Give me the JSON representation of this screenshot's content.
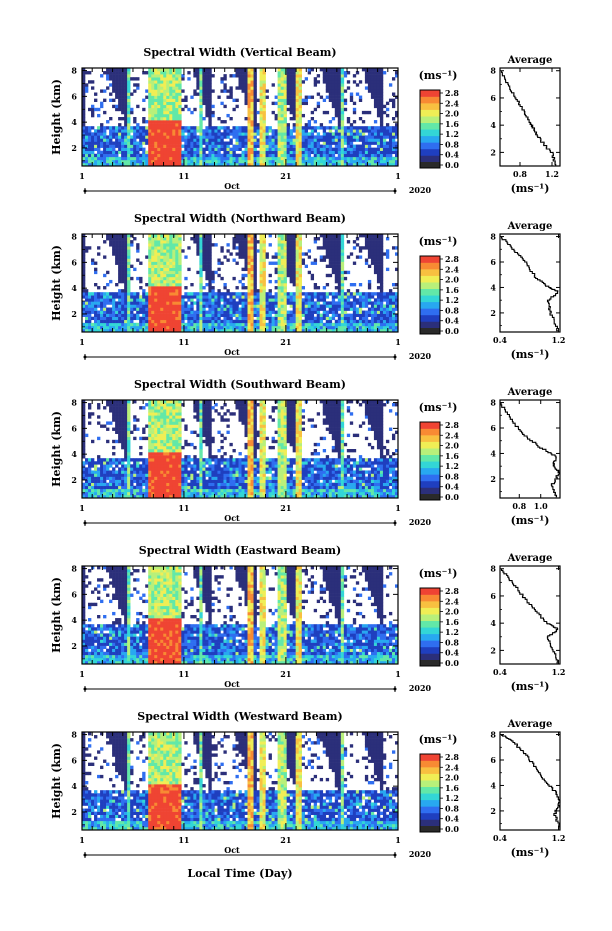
{
  "colors": {
    "colormap": [
      "#2b2f7a",
      "#1f3fbf",
      "#2f6ef0",
      "#28a8f0",
      "#33d6d6",
      "#62e8a8",
      "#b8f07a",
      "#f0ee55",
      "#f8c040",
      "#f88a33",
      "#ef4433"
    ],
    "colorbar_low": "#2a2a2a"
  },
  "common": {
    "height_label": "Height (km)",
    "month_label": "Oct",
    "year_label": "2020",
    "unit_label": "(ms⁻¹)",
    "average_title": "Average",
    "xlabel": "Local Time (Day)"
  },
  "chart_data": [
    {
      "type": "heatmap",
      "title": "Spectral Width (Vertical Beam)",
      "ylabel": "Height (km)",
      "xlabel": "",
      "x_ticks": [
        "1",
        "11",
        "21",
        "1"
      ],
      "xlim_days": [
        1,
        32
      ],
      "y_ticks": [
        "2",
        "4",
        "6",
        "8"
      ],
      "ylim_km": [
        0.6,
        8.2
      ],
      "colorbar": {
        "label": "(ms⁻¹)",
        "ticks": [
          "2.8",
          "2.4",
          "2.0",
          "1.6",
          "1.2",
          "0.8",
          "0.4",
          "0.0"
        ],
        "range": [
          0.0,
          2.8
        ]
      },
      "average_profile": {
        "title": "Average",
        "xlabel": "(ms⁻¹)",
        "x_ticks": [
          "0.8",
          "1.2"
        ],
        "xlim": [
          0.55,
          1.3
        ],
        "y_ticks": [
          "2",
          "4",
          "6",
          "8"
        ],
        "ylim": [
          1.0,
          8.2
        ],
        "profile": [
          [
            1.25,
            1.0
          ],
          [
            1.2,
            2.0
          ],
          [
            1.05,
            3.0
          ],
          [
            0.97,
            3.8
          ],
          [
            0.93,
            4.2
          ],
          [
            0.86,
            5.0
          ],
          [
            0.75,
            6.0
          ],
          [
            0.65,
            7.0
          ],
          [
            0.57,
            8.0
          ]
        ]
      }
    },
    {
      "type": "heatmap",
      "title": "Spectral Width (Northward Beam)",
      "ylabel": "Height (km)",
      "xlabel": "",
      "x_ticks": [
        "1",
        "11",
        "21",
        "1"
      ],
      "xlim_days": [
        1,
        32
      ],
      "y_ticks": [
        "2",
        "4",
        "6",
        "8"
      ],
      "ylim_km": [
        0.6,
        8.2
      ],
      "colorbar": {
        "label": "(ms⁻¹)",
        "ticks": [
          "2.8",
          "2.4",
          "2.0",
          "1.6",
          "1.2",
          "0.8",
          "0.4",
          "0.0"
        ],
        "range": [
          0.0,
          2.8
        ]
      },
      "average_profile": {
        "title": "Average",
        "xlabel": "(ms⁻¹)",
        "x_ticks": [
          "0.4",
          "1.2"
        ],
        "xlim": [
          0.4,
          1.22
        ],
        "y_ticks": [
          "2",
          "4",
          "6",
          "8"
        ],
        "ylim": [
          0.5,
          8.2
        ],
        "profile": [
          [
            1.2,
            0.6
          ],
          [
            1.1,
            2.0
          ],
          [
            1.05,
            3.0
          ],
          [
            1.2,
            3.7
          ],
          [
            1.08,
            4.0
          ],
          [
            0.9,
            4.8
          ],
          [
            0.75,
            6.0
          ],
          [
            0.6,
            7.0
          ],
          [
            0.42,
            8.0
          ]
        ]
      }
    },
    {
      "type": "heatmap",
      "title": "Spectral Width (Southward Beam)",
      "ylabel": "Height (km)",
      "xlabel": "",
      "x_ticks": [
        "1",
        "11",
        "21",
        "1"
      ],
      "xlim_days": [
        1,
        32
      ],
      "y_ticks": [
        "2",
        "4",
        "6",
        "8"
      ],
      "ylim_km": [
        0.6,
        8.2
      ],
      "colorbar": {
        "label": "(ms⁻¹)",
        "ticks": [
          "2.8",
          "2.4",
          "2.0",
          "1.6",
          "1.2",
          "0.8",
          "0.4",
          "0.0"
        ],
        "range": [
          0.0,
          2.8
        ]
      },
      "average_profile": {
        "title": "Average",
        "xlabel": "(ms⁻¹)",
        "x_ticks": [
          "0.8",
          "1.0"
        ],
        "xlim": [
          0.62,
          1.18
        ],
        "y_ticks": [
          "2",
          "4",
          "6",
          "8"
        ],
        "ylim": [
          0.5,
          8.2
        ],
        "profile": [
          [
            1.15,
            0.6
          ],
          [
            1.1,
            1.5
          ],
          [
            1.17,
            2.5
          ],
          [
            1.12,
            3.2
          ],
          [
            1.15,
            3.8
          ],
          [
            1.0,
            4.5
          ],
          [
            0.85,
            5.5
          ],
          [
            0.74,
            6.5
          ],
          [
            0.63,
            8.0
          ]
        ]
      }
    },
    {
      "type": "heatmap",
      "title": "Spectral Width (Eastward Beam)",
      "ylabel": "Height (km)",
      "xlabel": "",
      "x_ticks": [
        "1",
        "11",
        "21",
        "1"
      ],
      "xlim_days": [
        1,
        32
      ],
      "y_ticks": [
        "2",
        "4",
        "6",
        "8"
      ],
      "ylim_km": [
        0.6,
        8.2
      ],
      "colorbar": {
        "label": "(ms⁻¹)",
        "ticks": [
          "2.8",
          "2.4",
          "2.0",
          "1.6",
          "1.2",
          "0.8",
          "0.4",
          "0.0"
        ],
        "range": [
          0.0,
          2.8
        ]
      },
      "average_profile": {
        "title": "Average",
        "xlabel": "(ms⁻¹)",
        "x_ticks": [
          "0.4",
          "1.2"
        ],
        "xlim": [
          0.4,
          1.22
        ],
        "y_ticks": [
          "2",
          "4",
          "6",
          "8"
        ],
        "ylim": [
          1.0,
          8.2
        ],
        "profile": [
          [
            1.2,
            1.0
          ],
          [
            1.12,
            2.2
          ],
          [
            1.05,
            3.0
          ],
          [
            1.2,
            3.6
          ],
          [
            1.05,
            4.0
          ],
          [
            0.88,
            5.0
          ],
          [
            0.72,
            6.0
          ],
          [
            0.58,
            7.0
          ],
          [
            0.42,
            8.0
          ]
        ]
      }
    },
    {
      "type": "heatmap",
      "title": "Spectral Width (Westward Beam)",
      "ylabel": "Height (km)",
      "xlabel": "Local Time (Day)",
      "x_ticks": [
        "1",
        "11",
        "21",
        "1"
      ],
      "xlim_days": [
        1,
        32
      ],
      "y_ticks": [
        "2",
        "4",
        "6",
        "8"
      ],
      "ylim_km": [
        0.6,
        8.2
      ],
      "colorbar": {
        "label": "(ms⁻¹)",
        "ticks": [
          "2.8",
          "2.4",
          "2.0",
          "1.6",
          "1.2",
          "0.8",
          "0.4",
          "0.0"
        ],
        "range": [
          0.0,
          2.8
        ]
      },
      "average_profile": {
        "title": "Average",
        "xlabel": "(ms⁻¹)",
        "x_ticks": [
          "0.4",
          "1.2"
        ],
        "xlim": [
          0.4,
          1.22
        ],
        "y_ticks": [
          "2",
          "4",
          "6",
          "8"
        ],
        "ylim": [
          0.5,
          8.2
        ],
        "profile": [
          [
            1.22,
            0.6
          ],
          [
            1.15,
            1.8
          ],
          [
            1.22,
            2.8
          ],
          [
            1.15,
            3.6
          ],
          [
            1.0,
            4.5
          ],
          [
            0.88,
            5.5
          ],
          [
            0.75,
            6.5
          ],
          [
            0.58,
            7.5
          ],
          [
            0.42,
            8.0
          ]
        ]
      }
    }
  ]
}
